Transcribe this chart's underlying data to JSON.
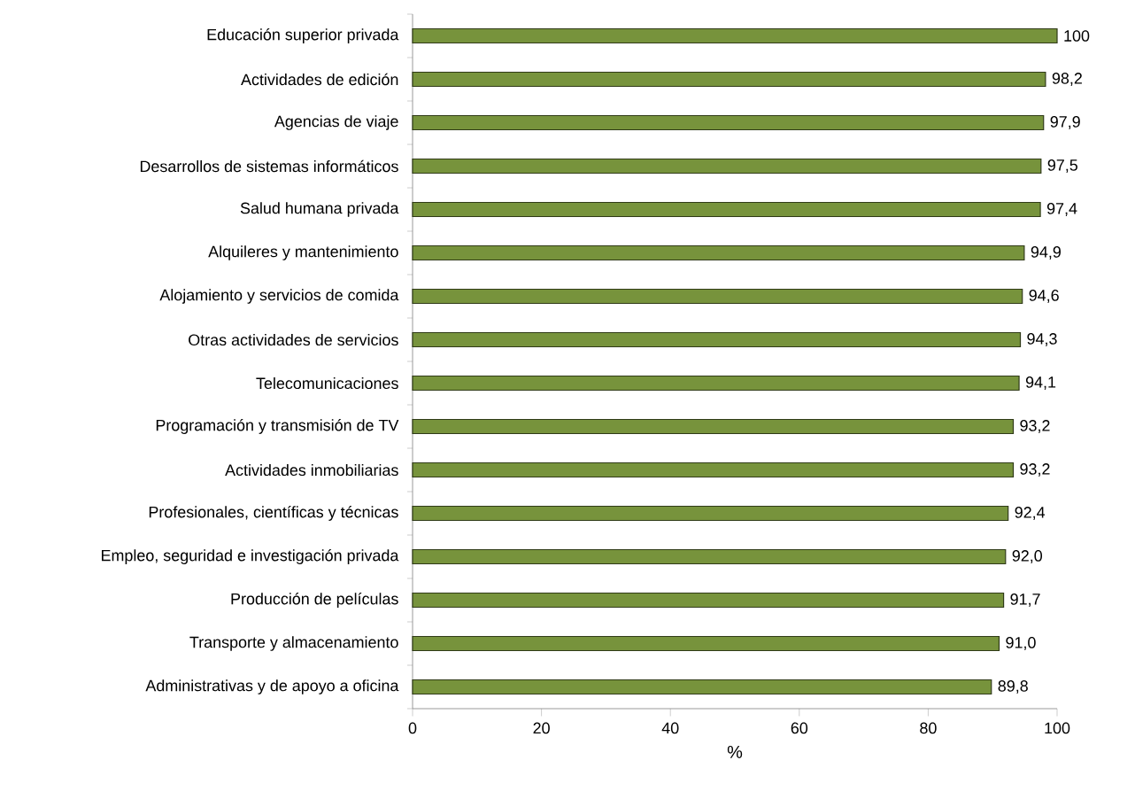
{
  "chart_data": {
    "type": "bar",
    "orientation": "horizontal",
    "xlabel": "%",
    "categories": [
      "Educación superior privada",
      "Actividades de edición",
      "Agencias de viaje",
      "Desarrollos de sistemas informáticos",
      "Salud humana privada",
      "Alquileres y mantenimiento",
      "Alojamiento y servicios de comida",
      "Otras actividades de servicios",
      "Telecomunicaciones",
      "Programación y transmisión de TV",
      "Actividades inmobiliarias",
      "Profesionales, científicas y técnicas",
      "Empleo, seguridad e investigación privada",
      "Producción de películas",
      "Transporte y almacenamiento",
      "Administrativas y de apoyo a oficina"
    ],
    "values": [
      100,
      98.2,
      97.9,
      97.5,
      97.4,
      94.9,
      94.6,
      94.3,
      94.1,
      93.2,
      93.2,
      92.4,
      92.0,
      91.7,
      91.0,
      89.8
    ],
    "value_labels": [
      "100",
      "98,2",
      "97,9",
      "97,5",
      "97,4",
      "94,9",
      "94,6",
      "94,3",
      "94,1",
      "93,2",
      "93,2",
      "92,4",
      "92,0",
      "91,7",
      "91,0",
      "89,8"
    ],
    "color": "#77933c",
    "xlim": [
      0,
      100
    ],
    "xticks": [
      0,
      20,
      40,
      60,
      80,
      100
    ],
    "grid": false
  }
}
